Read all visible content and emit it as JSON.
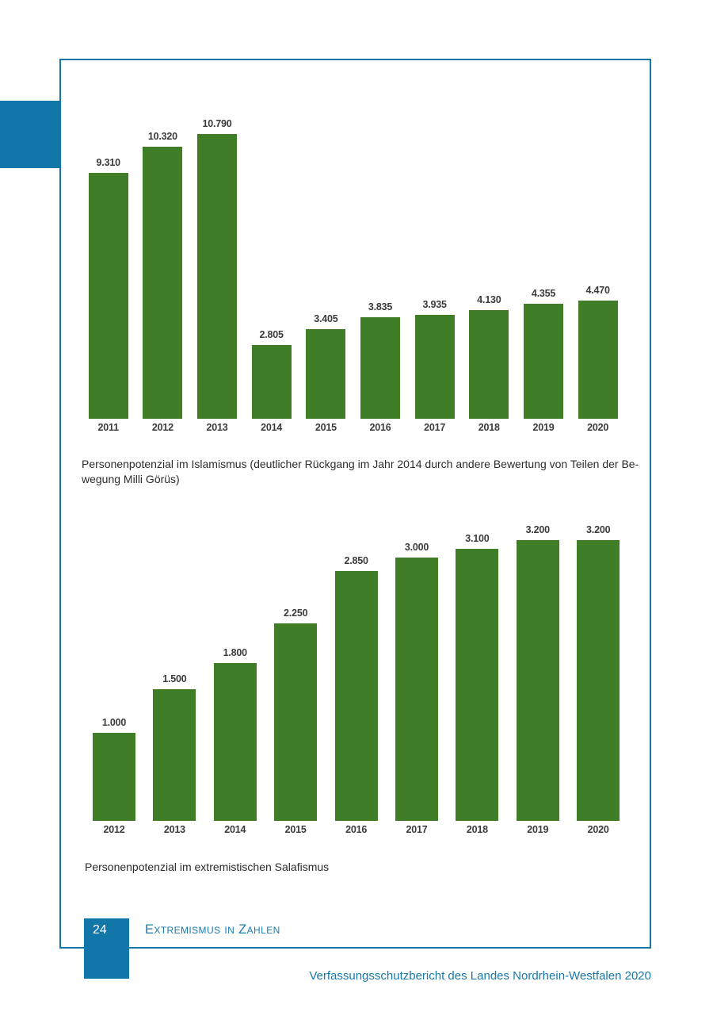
{
  "captions": {
    "islamismus": [
      "Personenpotenzial im Islamismus (deutlicher Rückgang im Jahr 2014 durch andere Bewertung von Teilen der Be-",
      "wegung Milli Görüs)"
    ],
    "salafismus": "Personenpotenzial im extremistischen Salafismus"
  },
  "footer": {
    "page_number": "24",
    "section_title": "Extremismus in Zahlen",
    "report_title": "Verfassungsschutzbericht des Landes Nordrhein-Westfalen 2020"
  },
  "colors": {
    "accent_blue": "#1277a8",
    "bar_green": "#3f7d26",
    "label_gray": "#3b3b3b"
  },
  "chart_data": [
    {
      "type": "bar",
      "title": "Personenpotenzial im Islamismus",
      "categories": [
        "2011",
        "2012",
        "2013",
        "2014",
        "2015",
        "2016",
        "2017",
        "2018",
        "2019",
        "2020"
      ],
      "values": [
        9310,
        10320,
        10790,
        2805,
        3405,
        3835,
        3935,
        4130,
        4355,
        4470
      ],
      "value_labels": [
        "9.310",
        "10.320",
        "10.790",
        "2.805",
        "3.405",
        "3.835",
        "3.935",
        "4.130",
        "4.355",
        "4.470"
      ],
      "xlabel": "",
      "ylabel": "",
      "ylim": [
        0,
        11000
      ],
      "grid": false,
      "legend": false
    },
    {
      "type": "bar",
      "title": "Personenpotenzial im extremistischen Salafismus",
      "categories": [
        "2012",
        "2013",
        "2014",
        "2015",
        "2016",
        "2017",
        "2018",
        "2019",
        "2020"
      ],
      "values": [
        1000,
        1500,
        1800,
        2250,
        2850,
        3000,
        3100,
        3200,
        3200
      ],
      "value_labels": [
        "1.000",
        "1.500",
        "1.800",
        "2.250",
        "2.850",
        "3.000",
        "3.100",
        "3.200",
        "3.200"
      ],
      "xlabel": "",
      "ylabel": "",
      "ylim": [
        0,
        3400
      ],
      "grid": false,
      "legend": false
    }
  ]
}
